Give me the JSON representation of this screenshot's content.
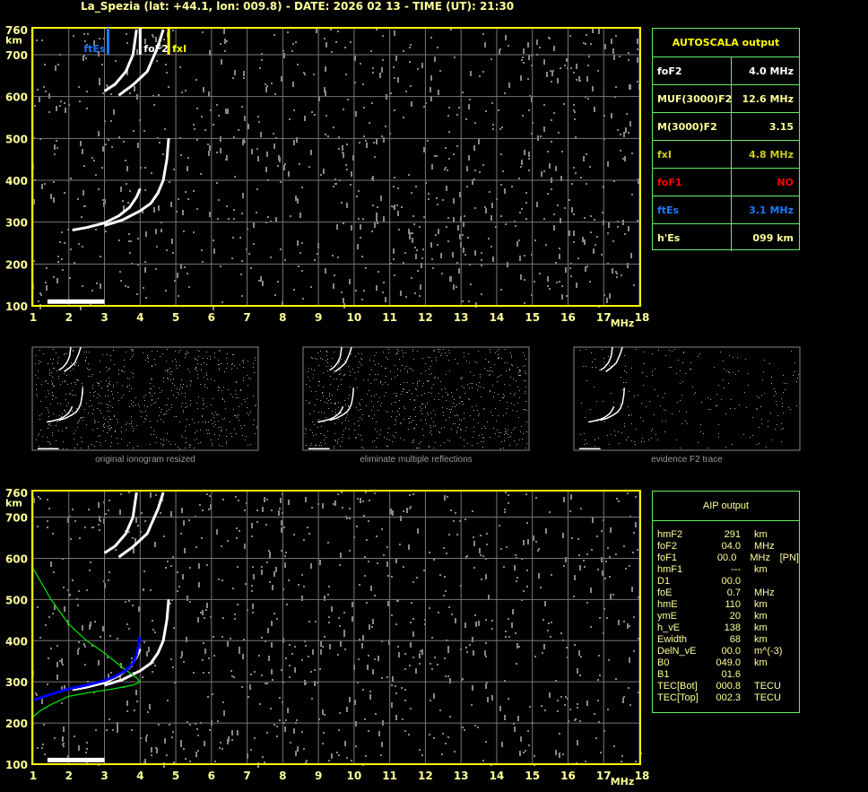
{
  "header": {
    "title": "La_Spezia (lat: +44.1, lon: 009.8) - DATE: 2026 02 13 - TIME (UT): 21:30"
  },
  "colors": {
    "axis": "#ffff00",
    "label": "#ffff99",
    "grid": "#777777",
    "ftEs": "#1e78ff",
    "foF2": "#ffffff",
    "fxI": "#ffff00",
    "foF1": "#ff0000",
    "profile": "#00dd00",
    "fit": "#0000ff",
    "table_border": "#66ee66"
  },
  "chart_data": [
    {
      "type": "scatter",
      "title": "",
      "xlabel": "MHz",
      "ylabel": "km",
      "xlim": [
        1,
        18
      ],
      "ylim": [
        100,
        760
      ],
      "x_ticks": [
        "1",
        "2",
        "3",
        "4",
        "5",
        "6",
        "7",
        "8",
        "9",
        "10",
        "11",
        "12",
        "13",
        "14",
        "15",
        "16",
        "17",
        "18"
      ],
      "y_ticks": [
        "100",
        "200",
        "300",
        "400",
        "500",
        "600",
        "700",
        "760"
      ],
      "grid": true,
      "markers": [
        {
          "name": "ftEs",
          "x": 3.1
        },
        {
          "name": "foF2",
          "x": 4.0
        },
        {
          "name": "fxI",
          "x": 4.8
        }
      ],
      "traces": [
        {
          "label": "F2 O-trace",
          "points": [
            [
              2.1,
              281
            ],
            [
              2.5,
              287
            ],
            [
              3.0,
              298
            ],
            [
              3.4,
              315
            ],
            [
              3.7,
              335
            ],
            [
              3.9,
              360
            ],
            [
              4.0,
              380
            ]
          ]
        },
        {
          "label": "F2 X-trace",
          "points": [
            [
              3.0,
              292
            ],
            [
              3.5,
              305
            ],
            [
              4.0,
              327
            ],
            [
              4.3,
              345
            ],
            [
              4.5,
              370
            ],
            [
              4.65,
              400
            ],
            [
              4.75,
              450
            ],
            [
              4.8,
              500
            ]
          ]
        },
        {
          "label": "F2 second hop O",
          "points": [
            [
              3.0,
              613
            ],
            [
              3.3,
              630
            ],
            [
              3.6,
              660
            ],
            [
              3.8,
              700
            ],
            [
              3.9,
              760
            ]
          ]
        },
        {
          "label": "F2 second hop X",
          "points": [
            [
              3.4,
              603
            ],
            [
              3.8,
              628
            ],
            [
              4.2,
              660
            ],
            [
              4.5,
              720
            ],
            [
              4.65,
              760
            ]
          ]
        },
        {
          "label": "Es",
          "points": [
            [
              1.4,
              110
            ],
            [
              2.0,
              110
            ],
            [
              2.5,
              110
            ],
            [
              3.0,
              110
            ]
          ]
        }
      ]
    },
    {
      "type": "line",
      "title": "",
      "xlabel": "MHz",
      "ylabel": "km",
      "xlim": [
        1,
        18
      ],
      "ylim": [
        100,
        760
      ],
      "x_ticks": [
        "1",
        "2",
        "3",
        "4",
        "5",
        "6",
        "7",
        "8",
        "9",
        "10",
        "11",
        "12",
        "13",
        "14",
        "15",
        "16",
        "17",
        "18"
      ],
      "y_ticks": [
        "100",
        "200",
        "300",
        "400",
        "500",
        "600",
        "700",
        "760"
      ],
      "grid": true,
      "series": [
        {
          "label": "electron density profile",
          "color": "#00dd00",
          "points": [
            [
              1.0,
              575
            ],
            [
              1.5,
              500
            ],
            [
              2.0,
              440
            ],
            [
              2.5,
              400
            ],
            [
              3.0,
              370
            ],
            [
              3.5,
              335
            ],
            [
              3.9,
              310
            ],
            [
              4.0,
              300
            ],
            [
              3.8,
              292
            ],
            [
              3.2,
              282
            ],
            [
              2.5,
              273
            ],
            [
              2.0,
              265
            ],
            [
              1.5,
              245
            ],
            [
              1.2,
              230
            ],
            [
              1.0,
              215
            ]
          ]
        },
        {
          "label": "fitted virtual height",
          "color": "#0000ff",
          "points": [
            [
              1.0,
              255
            ],
            [
              1.5,
              270
            ],
            [
              2.0,
              283
            ],
            [
              2.5,
              292
            ],
            [
              3.0,
              303
            ],
            [
              3.3,
              313
            ],
            [
              3.6,
              328
            ],
            [
              3.8,
              345
            ],
            [
              3.9,
              365
            ],
            [
              4.0,
              410
            ]
          ]
        }
      ]
    }
  ],
  "autoscala": {
    "title": "AUTOSCALA output",
    "rows": [
      {
        "key": "foF2",
        "value": "4.0 MHz",
        "color": "#ffffff"
      },
      {
        "key": "MUF(3000)F2",
        "value": "12.6 MHz",
        "color": "#ffff99"
      },
      {
        "key": "M(3000)F2",
        "value": "3.15",
        "color": "#ffff99"
      },
      {
        "key": "fxI",
        "value": "4.8 MHz",
        "color": "#cccc22"
      },
      {
        "key": "foF1",
        "value": "NO",
        "color": "#ff0000"
      },
      {
        "key": "ftEs",
        "value": "3.1 MHz",
        "color": "#1e78ff"
      },
      {
        "key": "h'Es",
        "value": "099    km",
        "color": "#ffff99"
      }
    ]
  },
  "aip": {
    "title": "AIP output",
    "rows": [
      [
        "hmF2",
        "291",
        "km",
        ""
      ],
      [
        "foF2",
        "04.0",
        "MHz",
        ""
      ],
      [
        "foF1",
        "00.0",
        "MHz",
        "[PN]"
      ],
      [
        "hmF1",
        "---",
        "km",
        ""
      ],
      [
        "D1",
        "00.0",
        "",
        ""
      ],
      [
        "foE",
        "0.7",
        "MHz",
        ""
      ],
      [
        "hmE",
        "110",
        "km",
        ""
      ],
      [
        "ymE",
        "20",
        "km",
        ""
      ],
      [
        "h_vE",
        "138",
        "km",
        ""
      ],
      [
        "Ewidth",
        "68",
        "km",
        ""
      ],
      [
        "DelN_vE",
        "00.0",
        "m^(-3)",
        ""
      ],
      [
        "B0",
        "049.0",
        "km",
        ""
      ],
      [
        "B1",
        "01.6",
        "",
        ""
      ],
      [
        "TEC[Bot]",
        "000.8",
        "TECU",
        ""
      ],
      [
        "TEC[Top]",
        "002.3",
        "TECU",
        ""
      ]
    ]
  },
  "thumbnails": [
    "original ionogram resized",
    "eliminate multiple reflections",
    "evidence F2 trace"
  ]
}
